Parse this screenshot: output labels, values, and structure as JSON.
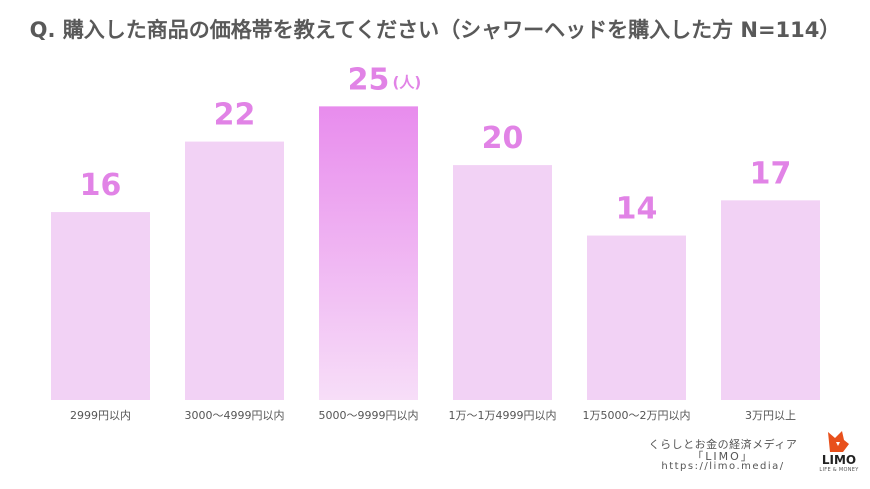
{
  "title": "Q. 購入した商品の価格帯を教えてください（シャワーヘッドを購入した方 N=114）",
  "unit_label": "(人)",
  "chart_data": {
    "type": "bar",
    "title": "Q. 購入した商品の価格帯を教えてください（シャワーヘッドを購入した方 N=114）",
    "categories": [
      "2999円以内",
      "3000〜4999円以内",
      "5000〜9999円以内",
      "1万〜1万4999円以内",
      "1万5000〜2万円以内",
      "3万円以上"
    ],
    "values": [
      16,
      22,
      25,
      20,
      14,
      17
    ],
    "ylim": [
      0,
      27.5
    ],
    "highlight_index": 2,
    "unit": "(人)",
    "grid": false,
    "legend": "none",
    "colors": {
      "bar": "#f2d2f5",
      "highlight_top": "#e88ced",
      "highlight_bottom": "#f7def8",
      "label": "#e183e6"
    }
  },
  "footer": {
    "line1": "くらしとお金の経済メディア",
    "line2": "「LIMO」",
    "url": "https://limo.media/"
  },
  "logo": {
    "text": "LIMO",
    "sub": "LIFE & MONEY",
    "icon": "fox-icon",
    "color": "#e8501c"
  }
}
